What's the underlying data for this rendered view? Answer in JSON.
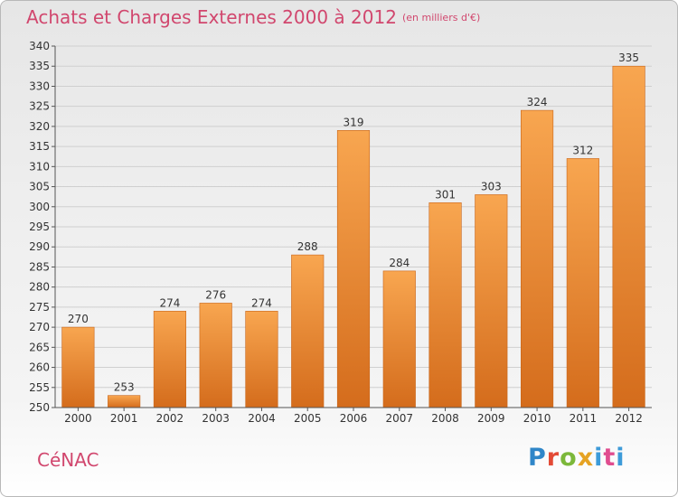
{
  "header": {
    "title": "Achats et Charges Externes 2000 à 2012",
    "subtitle": "(en milliers d'€)"
  },
  "footer": {
    "town": "CéNAC",
    "brand": "Proxiti"
  },
  "chart_data": {
    "type": "bar",
    "title": "Achats et Charges Externes 2000 à 2012",
    "subtitle": "(en milliers d'€)",
    "xlabel": "",
    "ylabel": "",
    "categories": [
      "2000",
      "2001",
      "2002",
      "2003",
      "2004",
      "2005",
      "2006",
      "2007",
      "2008",
      "2009",
      "2010",
      "2011",
      "2012"
    ],
    "values": [
      270,
      253,
      274,
      276,
      274,
      288,
      319,
      284,
      301,
      303,
      324,
      312,
      335
    ],
    "ylim": [
      250,
      340
    ],
    "ytick_step": 5,
    "grid": "horizontal",
    "data_labels": true,
    "legend": "none",
    "colors": {
      "bar_light": "#f7a24e",
      "bar_dark": "#d9711f",
      "title": "#d1476e"
    }
  }
}
